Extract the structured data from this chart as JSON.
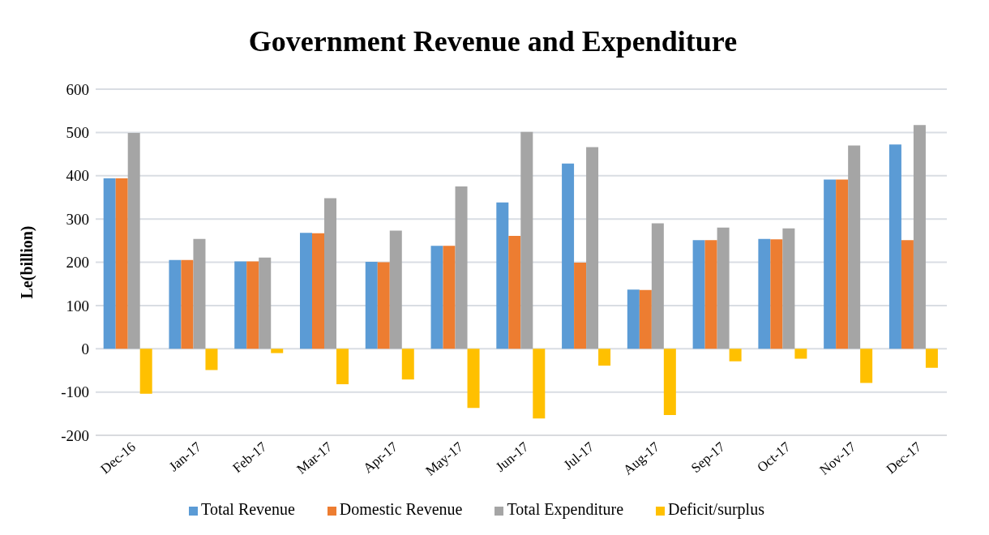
{
  "chart_data": {
    "type": "bar",
    "title": "Government Revenue and Expenditure",
    "ylabel": "Le(billion)",
    "categories": [
      "Dec-16",
      "Jan-17",
      "Feb-17",
      "Mar-17",
      "Apr-17",
      "May-17",
      "Jun-17",
      "Jul-17",
      "Aug-17",
      "Sep-17",
      "Oct-17",
      "Nov-17",
      "Dec-17"
    ],
    "series": [
      {
        "name": "Total Revenue",
        "color": "#5b9bd5",
        "values": [
          394,
          205,
          202,
          268,
          201,
          238,
          338,
          428,
          137,
          251,
          254,
          391,
          472
        ]
      },
      {
        "name": "Domestic Revenue",
        "color": "#ed7d31",
        "values": [
          394,
          205,
          202,
          267,
          200,
          238,
          261,
          199,
          136,
          251,
          253,
          391,
          251
        ]
      },
      {
        "name": "Total Expenditure",
        "color": "#a5a5a5",
        "values": [
          499,
          254,
          211,
          348,
          273,
          375,
          501,
          466,
          290,
          280,
          278,
          470,
          517
        ]
      },
      {
        "name": "Deficit/surplus",
        "color": "#ffc000",
        "values": [
          -104,
          -49,
          -10,
          -82,
          -71,
          -137,
          -161,
          -39,
          -153,
          -29,
          -23,
          -79,
          -44
        ]
      }
    ],
    "ylim": [
      -200,
      600
    ],
    "yticks": [
      -200,
      -100,
      0,
      100,
      200,
      300,
      400,
      500,
      600
    ],
    "grid": "y",
    "legend": "bottom"
  }
}
